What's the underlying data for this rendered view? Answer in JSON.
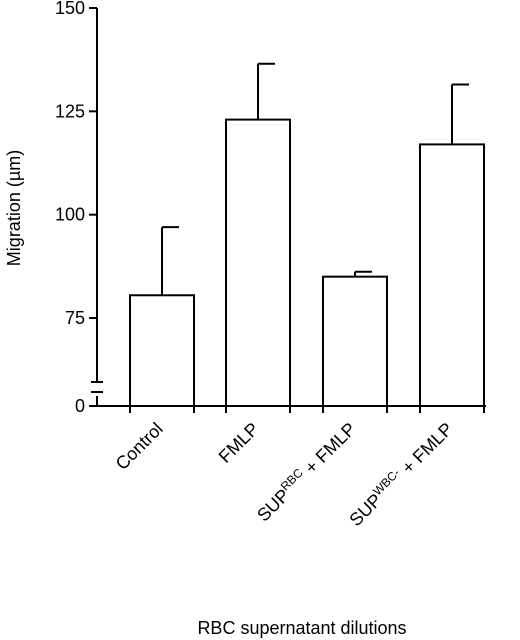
{
  "chart_data": {
    "type": "bar",
    "categories": [
      {
        "base": "Control",
        "sup": "",
        "tail": ""
      },
      {
        "base": "FMLP",
        "sup": "",
        "tail": ""
      },
      {
        "base": "SUP",
        "sup": "RBC",
        "tail": " + FMLP"
      },
      {
        "base": "SUP",
        "sup": "WBC-",
        "tail": " + FMLP"
      }
    ],
    "values": [
      80.5,
      123,
      85,
      117
    ],
    "errors": [
      16.5,
      13.5,
      1.2,
      14.5
    ],
    "ylabel": "Migration (µm)",
    "xlabel": "RBC supernatant dilutions",
    "ylim": [
      0,
      150
    ],
    "axis_break": true,
    "break_range": [
      0,
      70
    ],
    "yticks": [
      0,
      75,
      100,
      125,
      150
    ],
    "grid": false,
    "colors": {
      "bar_fill": "#ffffff",
      "stroke": "#000000"
    }
  }
}
